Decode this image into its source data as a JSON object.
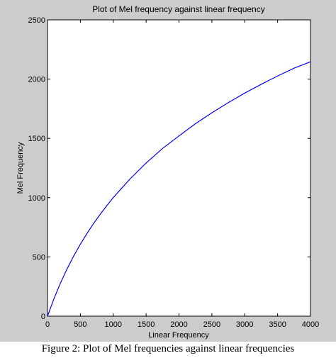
{
  "chart_data": {
    "type": "line",
    "title": "Plot of Mel frequency against linear frequency",
    "xlabel": "Linear Frequency",
    "ylabel": "Mel Frequency",
    "xlim": [
      0,
      4000
    ],
    "ylim": [
      0,
      2500
    ],
    "xticks": [
      0,
      500,
      1000,
      1500,
      2000,
      2500,
      3000,
      3500,
      4000
    ],
    "yticks": [
      0,
      500,
      1000,
      1500,
      2000,
      2500
    ],
    "grid": false,
    "legend": "none",
    "series": [
      {
        "color": "#0000ff",
        "x": [
          0,
          100,
          200,
          300,
          400,
          500,
          600,
          700,
          800,
          900,
          1000,
          1250,
          1500,
          1750,
          2000,
          2250,
          2500,
          2750,
          3000,
          3250,
          3500,
          3750,
          4000
        ],
        "y": [
          0,
          150,
          283,
          402,
          509,
          607,
          697,
          781,
          858,
          931,
          1000,
          1155,
          1292,
          1415,
          1521,
          1624,
          1716,
          1802,
          1882,
          1956,
          2026,
          2092,
          2146
        ]
      }
    ]
  },
  "caption": "Figure 2: Plot of Mel frequencies against linear frequencies"
}
